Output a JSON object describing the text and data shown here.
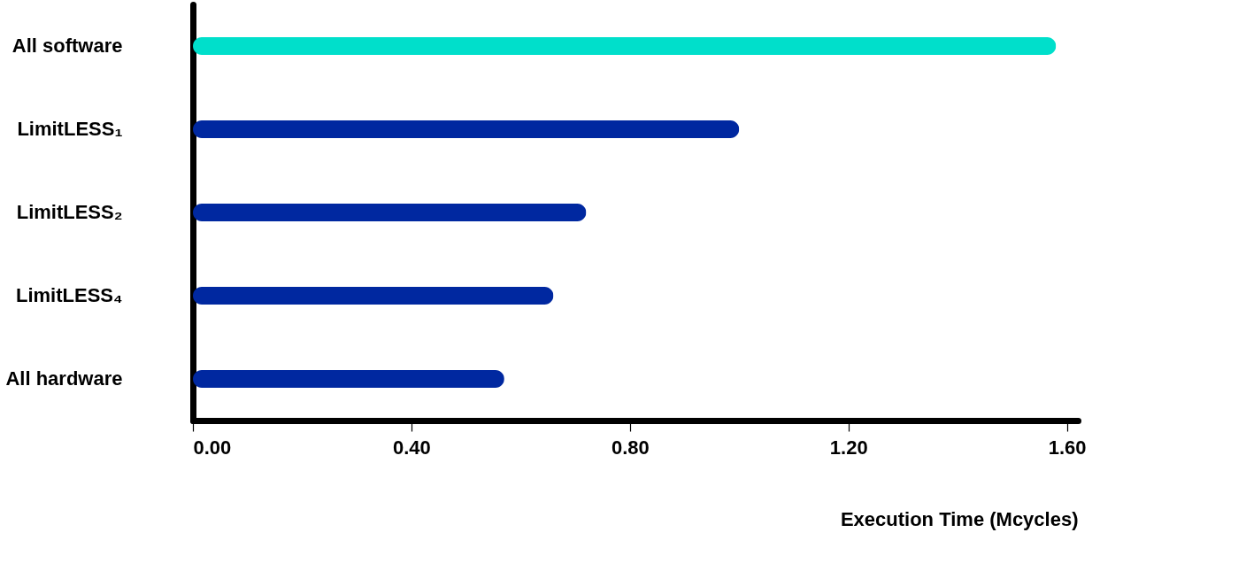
{
  "chart_data": {
    "type": "bar",
    "orientation": "horizontal",
    "categories": [
      "All software",
      "LimitLESS₁",
      "LimitLESS₂",
      "LimitLESS₄",
      "All hardware"
    ],
    "values": [
      1.58,
      1.0,
      0.72,
      0.66,
      0.57
    ],
    "colors": [
      "#00dfcb",
      "#0028a0",
      "#0028a0",
      "#0028a0",
      "#0028a0"
    ],
    "xlabel": "Execution Time (Mcycles)",
    "xlim": [
      0,
      1.62
    ],
    "xticks": [
      {
        "value": 0,
        "label": "0.00"
      },
      {
        "value": 0.4,
        "label": "0.40"
      },
      {
        "value": 0.8,
        "label": "0.80"
      },
      {
        "value": 1.2,
        "label": "1.20"
      },
      {
        "value": 1.6,
        "label": "1.60"
      }
    ],
    "grid": false
  }
}
